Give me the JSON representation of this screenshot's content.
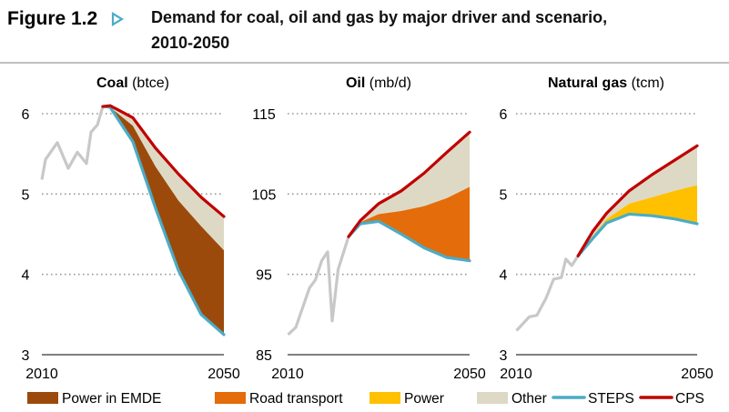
{
  "figure": {
    "label": "Figure 1.2",
    "title_line1": "Demand for coal, oil and gas by major driver and scenario,",
    "title_line2": "2010-2050",
    "accent": "#4BACC6"
  },
  "colors": {
    "power_emde": "#9C4A0C",
    "road_transport": "#E46C0A",
    "power": "#FFC000",
    "other": "#DDD9C4",
    "steps": "#4BACC6",
    "cps": "#C00000",
    "historical": "#C8C8C8",
    "grid": "#999999"
  },
  "legend": [
    {
      "label": "Power in EMDE",
      "kind": "area",
      "color_key": "power_emde"
    },
    {
      "label": "Road transport",
      "kind": "area",
      "color_key": "road_transport"
    },
    {
      "label": "Power",
      "kind": "area",
      "color_key": "power"
    },
    {
      "label": "Other",
      "kind": "area",
      "color_key": "other"
    },
    {
      "label": "STEPS",
      "kind": "line",
      "color_key": "steps"
    },
    {
      "label": "CPS",
      "kind": "line",
      "color_key": "cps"
    }
  ],
  "chart_data": [
    {
      "type": "area",
      "title_bold": "Coal",
      "title_unit": "(btce)",
      "xlim": [
        2010,
        2050
      ],
      "ylim": [
        3,
        6
      ],
      "yticks": [
        "3",
        "4",
        "5",
        "6"
      ],
      "ytick_values": [
        3,
        4,
        5,
        6
      ],
      "xtick_labels": [
        "2010",
        "2050"
      ],
      "grid": "dotted horizontal",
      "driver": "Power in EMDE",
      "driver_color_key": "power_emde",
      "historical": {
        "x": [
          2010,
          2010.8,
          2013.4,
          2015.8,
          2017.8,
          2019.8,
          2020.8,
          2022.2,
          2023.4
        ],
        "y": [
          5.18,
          5.43,
          5.64,
          5.32,
          5.52,
          5.38,
          5.77,
          5.86,
          6.09
        ]
      },
      "projection_x": [
        2023.4,
        2025,
        2030,
        2035,
        2040,
        2045,
        2050
      ],
      "steps": [
        6.09,
        6.08,
        5.65,
        4.82,
        4.05,
        3.5,
        3.25
      ],
      "steps_plus_driver": [
        6.09,
        6.08,
        5.85,
        5.34,
        4.92,
        4.6,
        4.3
      ],
      "cps": [
        6.09,
        6.1,
        5.95,
        5.57,
        5.25,
        4.96,
        4.72
      ]
    },
    {
      "type": "area",
      "title_bold": "Oil",
      "title_unit": "(mb/d)",
      "xlim": [
        2010,
        2050
      ],
      "ylim": [
        85,
        115
      ],
      "yticks": [
        "85",
        "95",
        "105",
        "115"
      ],
      "ytick_values": [
        85,
        95,
        105,
        115
      ],
      "xtick_labels": [
        "2010",
        "2050"
      ],
      "grid": "dotted horizontal",
      "driver": "Road transport",
      "driver_color_key": "road_transport",
      "historical": {
        "x": [
          2010.1,
          2011.8,
          2014.8,
          2016.1,
          2017.5,
          2018.8,
          2019.8,
          2021.1,
          2023.4
        ],
        "y": [
          87.5,
          88.4,
          93.3,
          94.3,
          96.7,
          97.8,
          89.2,
          95.6,
          99.7
        ]
      },
      "projection_x": [
        2023.4,
        2026,
        2030,
        2035,
        2040,
        2045,
        2050
      ],
      "steps": [
        99.7,
        101.3,
        101.6,
        100.0,
        98.3,
        97.1,
        96.7
      ],
      "steps_plus_driver": [
        99.7,
        101.5,
        102.5,
        102.9,
        103.5,
        104.5,
        105.9
      ],
      "cps": [
        99.7,
        101.7,
        103.8,
        105.4,
        107.6,
        110.2,
        112.7
      ]
    },
    {
      "type": "area",
      "title_bold": "Natural gas",
      "title_unit": "(tcm)",
      "xlim": [
        2010,
        2050
      ],
      "ylim": [
        3,
        6
      ],
      "yticks": [
        "3",
        "4",
        "5",
        "6"
      ],
      "ytick_values": [
        3,
        4,
        5,
        6
      ],
      "xtick_labels": [
        "2010",
        "2050"
      ],
      "grid": "dotted horizontal",
      "driver": "Power",
      "driver_color_key": "power",
      "historical": {
        "x": [
          2010.1,
          2012.9,
          2014.6,
          2016.6,
          2018.3,
          2020,
          2021,
          2022.3,
          2023.7
        ],
        "y": [
          3.3,
          3.47,
          3.49,
          3.7,
          3.94,
          3.96,
          4.19,
          4.11,
          4.23
        ]
      },
      "projection_x": [
        2023.7,
        2027,
        2030,
        2035,
        2040,
        2045,
        2050
      ],
      "steps": [
        4.23,
        4.45,
        4.64,
        4.75,
        4.73,
        4.69,
        4.63
      ],
      "steps_plus_driver": [
        4.23,
        4.48,
        4.69,
        4.88,
        4.96,
        5.04,
        5.11
      ],
      "cps": [
        4.23,
        4.54,
        4.76,
        5.04,
        5.24,
        5.42,
        5.6
      ]
    }
  ]
}
